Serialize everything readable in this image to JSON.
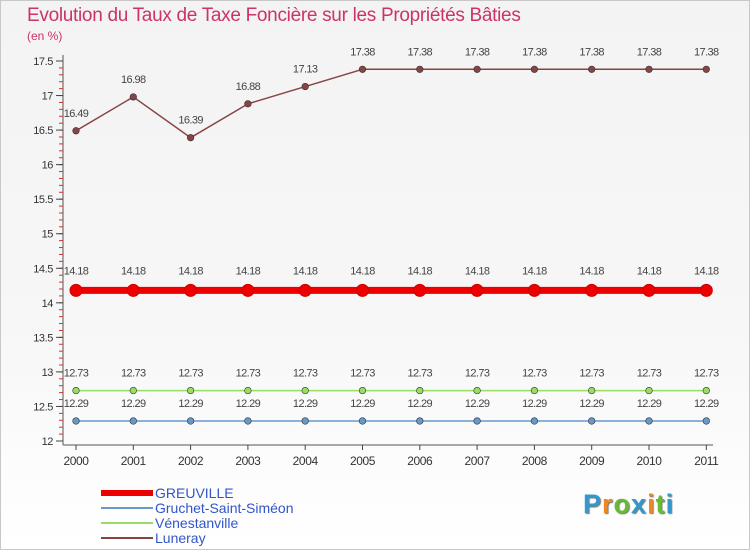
{
  "title": "Evolution du Taux de Taxe Foncière sur les Propriétés Bâties",
  "unit": "(en %)",
  "logo": {
    "text": "Proxiti",
    "letters": [
      "P",
      "r",
      "o",
      "x",
      "i",
      "t",
      "i"
    ],
    "colors": [
      "#3399cc",
      "#ee8822",
      "#66bb33",
      "#3399cc",
      "#ee8822",
      "#66bb33",
      "#3399cc"
    ]
  },
  "chart_data": {
    "type": "line",
    "title": "Evolution du Taux de Taxe Foncière sur les Propriétés Bâties",
    "ylabel": "(en %)",
    "xlabel": "",
    "ylim": [
      12,
      17.5
    ],
    "yticks": [
      12,
      12.5,
      13,
      13.5,
      14,
      14.5,
      15,
      15.5,
      16,
      16.5,
      17,
      17.5
    ],
    "ytick_labels": [
      "12",
      "12.5",
      "13",
      "13.5",
      "14",
      "14.5",
      "15",
      "15.5",
      "16",
      "16.5",
      "17",
      "17.5"
    ],
    "categories": [
      "2000",
      "2001",
      "2002",
      "2003",
      "2004",
      "2005",
      "2006",
      "2007",
      "2008",
      "2009",
      "2010",
      "2011"
    ],
    "legend_position": "bottom-left",
    "series": [
      {
        "name": "GREUVILLE",
        "color": "#ee0000",
        "values": [
          14.18,
          14.18,
          14.18,
          14.18,
          14.18,
          14.18,
          14.18,
          14.18,
          14.18,
          14.18,
          14.18,
          14.18
        ],
        "labels": [
          "14.18",
          "14.18",
          "14.18",
          "14.18",
          "14.18",
          "14.18",
          "14.18",
          "14.18",
          "14.18",
          "14.18",
          "14.18",
          "14.18"
        ]
      },
      {
        "name": "Gruchet-Saint-Siméon",
        "color": "#6699cc",
        "values": [
          12.29,
          12.29,
          12.29,
          12.29,
          12.29,
          12.29,
          12.29,
          12.29,
          12.29,
          12.29,
          12.29,
          12.29
        ],
        "labels": [
          "12.29",
          "12.29",
          "12.29",
          "12.29",
          "12.29",
          "12.29",
          "12.29",
          "12.29",
          "12.29",
          "12.29",
          "12.29",
          "12.29"
        ]
      },
      {
        "name": "Vénestanville",
        "color": "#99dd66",
        "values": [
          12.73,
          12.73,
          12.73,
          12.73,
          12.73,
          12.73,
          12.73,
          12.73,
          12.73,
          12.73,
          12.73,
          12.73
        ],
        "labels": [
          "12.73",
          "12.73",
          "12.73",
          "12.73",
          "12.73",
          "12.73",
          "12.73",
          "12.73",
          "12.73",
          "12.73",
          "12.73",
          "12.73"
        ]
      },
      {
        "name": "Luneray",
        "color": "#884444",
        "values": [
          16.49,
          16.98,
          16.39,
          16.88,
          17.13,
          17.38,
          17.38,
          17.38,
          17.38,
          17.38,
          17.38,
          17.38
        ],
        "labels": [
          "16.49",
          "16.98",
          "16.39",
          "16.88",
          "17.13",
          "17.38",
          "17.38",
          "17.38",
          "17.38",
          "17.38",
          "17.38",
          "17.38"
        ]
      }
    ]
  }
}
